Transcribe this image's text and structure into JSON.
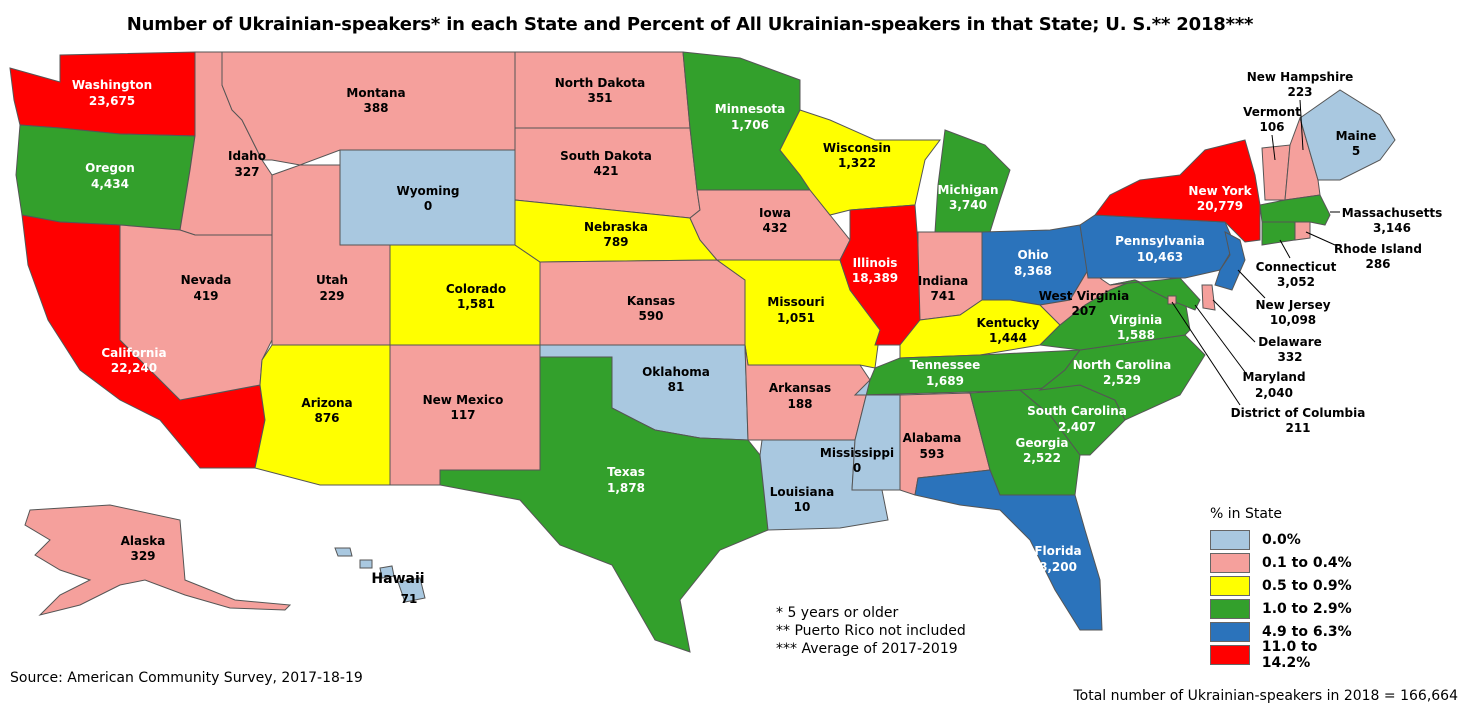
{
  "title": "Number of Ukrainian-speakers* in each State and Percent of All Ukrainian-speakers in that State; U. S.** 2018***",
  "colors": {
    "c0": "#a9c8e0",
    "c1": "#f5a09c",
    "c2": "#ffff00",
    "c3": "#33a02c",
    "c4": "#2b73bb",
    "c5": "#ff0000"
  },
  "states": {
    "WA": {
      "name": "Washington",
      "value": "23,675",
      "cat": "c5"
    },
    "OR": {
      "name": "Oregon",
      "value": "4,434",
      "cat": "c3"
    },
    "CA": {
      "name": "California",
      "value": "22,240",
      "cat": "c5"
    },
    "ID": {
      "name": "Idaho",
      "value": "327",
      "cat": "c1"
    },
    "NV": {
      "name": "Nevada",
      "value": "419",
      "cat": "c1"
    },
    "MT": {
      "name": "Montana",
      "value": "388",
      "cat": "c1"
    },
    "WY": {
      "name": "Wyoming",
      "value": "0",
      "cat": "c0"
    },
    "UT": {
      "name": "Utah",
      "value": "229",
      "cat": "c1"
    },
    "AZ": {
      "name": "Arizona",
      "value": "876",
      "cat": "c2"
    },
    "CO": {
      "name": "Colorado",
      "value": "1,581",
      "cat": "c2"
    },
    "NM": {
      "name": "New Mexico",
      "value": "117",
      "cat": "c1"
    },
    "ND": {
      "name": "North Dakota",
      "value": "351",
      "cat": "c1"
    },
    "SD": {
      "name": "South Dakota",
      "value": "421",
      "cat": "c1"
    },
    "NE": {
      "name": "Nebraska",
      "value": "789",
      "cat": "c2"
    },
    "KS": {
      "name": "Kansas",
      "value": "590",
      "cat": "c1"
    },
    "OK": {
      "name": "Oklahoma",
      "value": "81",
      "cat": "c0"
    },
    "TX": {
      "name": "Texas",
      "value": "1,878",
      "cat": "c3"
    },
    "MN": {
      "name": "Minnesota",
      "value": "1,706",
      "cat": "c3"
    },
    "IA": {
      "name": "Iowa",
      "value": "432",
      "cat": "c1"
    },
    "MO": {
      "name": "Missouri",
      "value": "1,051",
      "cat": "c2"
    },
    "AR": {
      "name": "Arkansas",
      "value": "188",
      "cat": "c1"
    },
    "LA": {
      "name": "Louisiana",
      "value": "10",
      "cat": "c0"
    },
    "WI": {
      "name": "Wisconsin",
      "value": "1,322",
      "cat": "c2"
    },
    "IL": {
      "name": "Illinois",
      "value": "18,389",
      "cat": "c5"
    },
    "MI": {
      "name": "Michigan",
      "value": "3,740",
      "cat": "c3"
    },
    "IN": {
      "name": "Indiana",
      "value": "741",
      "cat": "c1"
    },
    "OH": {
      "name": "Ohio",
      "value": "8,368",
      "cat": "c4"
    },
    "KY": {
      "name": "Kentucky",
      "value": "1,444",
      "cat": "c2"
    },
    "TN": {
      "name": "Tennessee",
      "value": "1,689",
      "cat": "c3"
    },
    "MS": {
      "name": "Mississippi",
      "value": "0",
      "cat": "c0"
    },
    "AL": {
      "name": "Alabama",
      "value": "593",
      "cat": "c1"
    },
    "GA": {
      "name": "Georgia",
      "value": "2,522",
      "cat": "c3"
    },
    "FL": {
      "name": "Florida",
      "value": "8,200",
      "cat": "c4"
    },
    "SC": {
      "name": "South Carolina",
      "value": "2,407",
      "cat": "c3"
    },
    "NC": {
      "name": "North Carolina",
      "value": "2,529",
      "cat": "c3"
    },
    "VA": {
      "name": "Virginia",
      "value": "1,588",
      "cat": "c3"
    },
    "WV": {
      "name": "West Virginia",
      "value": "207",
      "cat": "c1"
    },
    "PA": {
      "name": "Pennsylvania",
      "value": "10,463",
      "cat": "c4"
    },
    "NY": {
      "name": "New York",
      "value": "20,779",
      "cat": "c5"
    },
    "VT": {
      "name": "Vermont",
      "value": "106",
      "cat": "c1"
    },
    "NH": {
      "name": "New Hampshire",
      "value": "223",
      "cat": "c1"
    },
    "ME": {
      "name": "Maine",
      "value": "5",
      "cat": "c0"
    },
    "MA": {
      "name": "Massachusetts",
      "value": "3,146",
      "cat": "c3"
    },
    "RI": {
      "name": "Rhode Island",
      "value": "286",
      "cat": "c1"
    },
    "CT": {
      "name": "Connecticut",
      "value": "3,052",
      "cat": "c3"
    },
    "NJ": {
      "name": "New Jersey",
      "value": "10,098",
      "cat": "c4"
    },
    "DE": {
      "name": "Delaware",
      "value": "332",
      "cat": "c1"
    },
    "MD": {
      "name": "Maryland",
      "value": "2,040",
      "cat": "c3"
    },
    "DC": {
      "name": "District of Columbia",
      "value": "211",
      "cat": "c1"
    },
    "AK": {
      "name": "Alaska",
      "value": "329",
      "cat": "c1"
    },
    "HI": {
      "name": "Hawaii",
      "value": "71",
      "cat": "c0"
    }
  },
  "legend": {
    "title": "% in State",
    "items": [
      {
        "label": "0.0%",
        "cat": "c0"
      },
      {
        "label": "0.1 to 0.4%",
        "cat": "c1"
      },
      {
        "label": "0.5 to 0.9%",
        "cat": "c2"
      },
      {
        "label": "1.0 to 2.9%",
        "cat": "c3"
      },
      {
        "label": "4.9 to 6.3%",
        "cat": "c4"
      },
      {
        "label": "11.0 to 14.2%",
        "cat": "c5"
      }
    ]
  },
  "notes": [
    "* 5 years or older",
    "** Puerto Rico not included",
    "*** Average of 2017-2019"
  ],
  "source": "Source: American Community Survey, 2017-18-19",
  "total": "Total number of Ukrainian-speakers in 2018 = 166,664"
}
